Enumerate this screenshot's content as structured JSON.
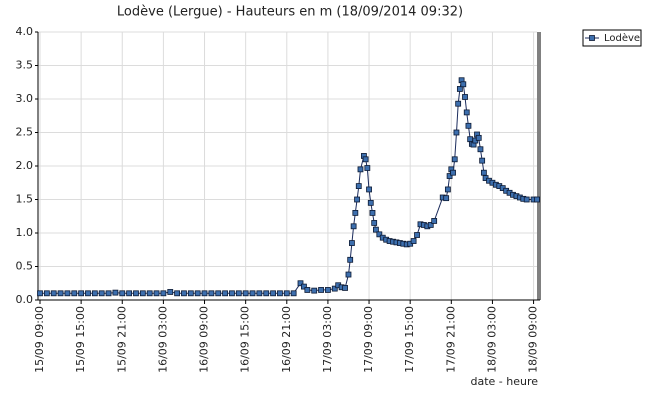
{
  "chart_data": {
    "type": "line",
    "title": "Lodève (Lergue) - Hauteurs en m (18/09/2014 09:32)",
    "x_label": "date - heure",
    "x": [
      "2014-09-15T09:00",
      "2014-09-15T10:00",
      "2014-09-15T11:00",
      "2014-09-15T12:00",
      "2014-09-15T13:00",
      "2014-09-15T14:00",
      "2014-09-15T15:00",
      "2014-09-15T16:00",
      "2014-09-15T17:00",
      "2014-09-15T18:00",
      "2014-09-15T19:00",
      "2014-09-15T20:00",
      "2014-09-15T21:00",
      "2014-09-15T22:00",
      "2014-09-15T23:00",
      "2014-09-16T00:00",
      "2014-09-16T01:00",
      "2014-09-16T02:00",
      "2014-09-16T03:00",
      "2014-09-16T04:00",
      "2014-09-16T05:00",
      "2014-09-16T06:00",
      "2014-09-16T07:00",
      "2014-09-16T08:00",
      "2014-09-16T09:00",
      "2014-09-16T10:00",
      "2014-09-16T11:00",
      "2014-09-16T12:00",
      "2014-09-16T13:00",
      "2014-09-16T14:00",
      "2014-09-16T15:00",
      "2014-09-16T16:00",
      "2014-09-16T17:00",
      "2014-09-16T18:00",
      "2014-09-16T19:00",
      "2014-09-16T20:00",
      "2014-09-16T21:00",
      "2014-09-16T22:00",
      "2014-09-16T23:00",
      "2014-09-16T23:30",
      "2014-09-17T00:00",
      "2014-09-17T01:00",
      "2014-09-17T02:00",
      "2014-09-17T03:00",
      "2014-09-17T04:00",
      "2014-09-17T04:30",
      "2014-09-17T05:00",
      "2014-09-17T05:30",
      "2014-09-17T06:00",
      "2014-09-17T06:15",
      "2014-09-17T06:30",
      "2014-09-17T06:45",
      "2014-09-17T07:00",
      "2014-09-17T07:15",
      "2014-09-17T07:30",
      "2014-09-17T07:45",
      "2014-09-17T08:15",
      "2014-09-17T08:30",
      "2014-09-17T08:45",
      "2014-09-17T09:00",
      "2014-09-17T09:15",
      "2014-09-17T09:30",
      "2014-09-17T09:45",
      "2014-09-17T10:00",
      "2014-09-17T10:30",
      "2014-09-17T11:00",
      "2014-09-17T11:30",
      "2014-09-17T12:00",
      "2014-09-17T12:30",
      "2014-09-17T13:00",
      "2014-09-17T13:30",
      "2014-09-17T14:00",
      "2014-09-17T14:30",
      "2014-09-17T15:00",
      "2014-09-17T15:30",
      "2014-09-17T16:00",
      "2014-09-17T16:30",
      "2014-09-17T17:00",
      "2014-09-17T17:30",
      "2014-09-17T18:00",
      "2014-09-17T18:30",
      "2014-09-17T19:45",
      "2014-09-17T20:15",
      "2014-09-17T20:30",
      "2014-09-17T20:45",
      "2014-09-17T21:00",
      "2014-09-17T21:15",
      "2014-09-17T21:30",
      "2014-09-17T21:45",
      "2014-09-17T22:00",
      "2014-09-17T22:15",
      "2014-09-17T22:30",
      "2014-09-17T22:45",
      "2014-09-17T23:00",
      "2014-09-17T23:15",
      "2014-09-17T23:30",
      "2014-09-17T23:45",
      "2014-09-18T00:00",
      "2014-09-18T00:15",
      "2014-09-18T00:30",
      "2014-09-18T00:45",
      "2014-09-18T01:00",
      "2014-09-18T01:15",
      "2014-09-18T01:30",
      "2014-09-18T01:45",
      "2014-09-18T02:00",
      "2014-09-18T02:30",
      "2014-09-18T03:00",
      "2014-09-18T03:30",
      "2014-09-18T04:00",
      "2014-09-18T04:30",
      "2014-09-18T05:00",
      "2014-09-18T05:30",
      "2014-09-18T06:00",
      "2014-09-18T06:30",
      "2014-09-18T07:00",
      "2014-09-18T07:30",
      "2014-09-18T08:00",
      "2014-09-18T09:00",
      "2014-09-18T09:30"
    ],
    "series": [
      {
        "name": "Lodève",
        "color": "#3d6fae",
        "line_color": "#1b2b5c",
        "values": [
          0.1,
          0.1,
          0.1,
          0.1,
          0.1,
          0.1,
          0.1,
          0.1,
          0.1,
          0.1,
          0.1,
          0.11,
          0.1,
          0.1,
          0.1,
          0.1,
          0.1,
          0.1,
          0.1,
          0.12,
          0.1,
          0.1,
          0.1,
          0.1,
          0.1,
          0.1,
          0.1,
          0.1,
          0.1,
          0.1,
          0.1,
          0.1,
          0.1,
          0.1,
          0.1,
          0.1,
          0.1,
          0.1,
          0.25,
          0.2,
          0.15,
          0.14,
          0.15,
          0.15,
          0.17,
          0.22,
          0.19,
          0.18,
          0.38,
          0.6,
          0.85,
          1.1,
          1.3,
          1.5,
          1.7,
          1.95,
          2.15,
          2.1,
          1.97,
          1.65,
          1.45,
          1.3,
          1.15,
          1.05,
          0.98,
          0.93,
          0.9,
          0.88,
          0.87,
          0.86,
          0.85,
          0.84,
          0.83,
          0.84,
          0.88,
          0.97,
          1.13,
          1.12,
          1.1,
          1.12,
          1.18,
          1.53,
          1.52,
          1.65,
          1.85,
          1.95,
          1.9,
          2.1,
          2.5,
          2.93,
          3.15,
          3.28,
          3.22,
          3.03,
          2.8,
          2.6,
          2.4,
          2.33,
          2.32,
          2.38,
          2.47,
          2.42,
          2.25,
          2.08,
          1.9,
          1.82,
          1.78,
          1.75,
          1.72,
          1.7,
          1.67,
          1.63,
          1.6,
          1.57,
          1.55,
          1.53,
          1.51,
          1.5,
          1.5,
          1.5
        ]
      }
    ],
    "xlim": [
      "2014-09-15T09:00",
      "2014-09-18T09:30"
    ],
    "xticks": [
      {
        "value": "2014-09-15T09:00",
        "label": "15/09 09:00"
      },
      {
        "value": "2014-09-15T15:00",
        "label": "15/09 15:00"
      },
      {
        "value": "2014-09-15T21:00",
        "label": "15/09 21:00"
      },
      {
        "value": "2014-09-16T03:00",
        "label": "16/09 03:00"
      },
      {
        "value": "2014-09-16T09:00",
        "label": "16/09 09:00"
      },
      {
        "value": "2014-09-16T15:00",
        "label": "16/09 15:00"
      },
      {
        "value": "2014-09-16T21:00",
        "label": "16/09 21:00"
      },
      {
        "value": "2014-09-17T03:00",
        "label": "17/09 03:00"
      },
      {
        "value": "2014-09-17T09:00",
        "label": "17/09 09:00"
      },
      {
        "value": "2014-09-17T15:00",
        "label": "17/09 15:00"
      },
      {
        "value": "2014-09-17T21:00",
        "label": "17/09 21:00"
      },
      {
        "value": "2014-09-18T03:00",
        "label": "18/09 03:00"
      },
      {
        "value": "2014-09-18T09:00",
        "label": "18/09 09:00"
      }
    ],
    "ylim": [
      0,
      4
    ],
    "yticks": [
      {
        "value": 0,
        "label": "0.0"
      },
      {
        "value": 0.5,
        "label": "0.5"
      },
      {
        "value": 1,
        "label": "1.0"
      },
      {
        "value": 1.5,
        "label": "1.5"
      },
      {
        "value": 2,
        "label": "2.0"
      },
      {
        "value": 2.5,
        "label": "2.5"
      },
      {
        "value": 3,
        "label": "3.0"
      },
      {
        "value": 3.5,
        "label": "3.5"
      },
      {
        "value": 4,
        "label": "4.0"
      }
    ],
    "grid": true,
    "legend": "top-right"
  }
}
